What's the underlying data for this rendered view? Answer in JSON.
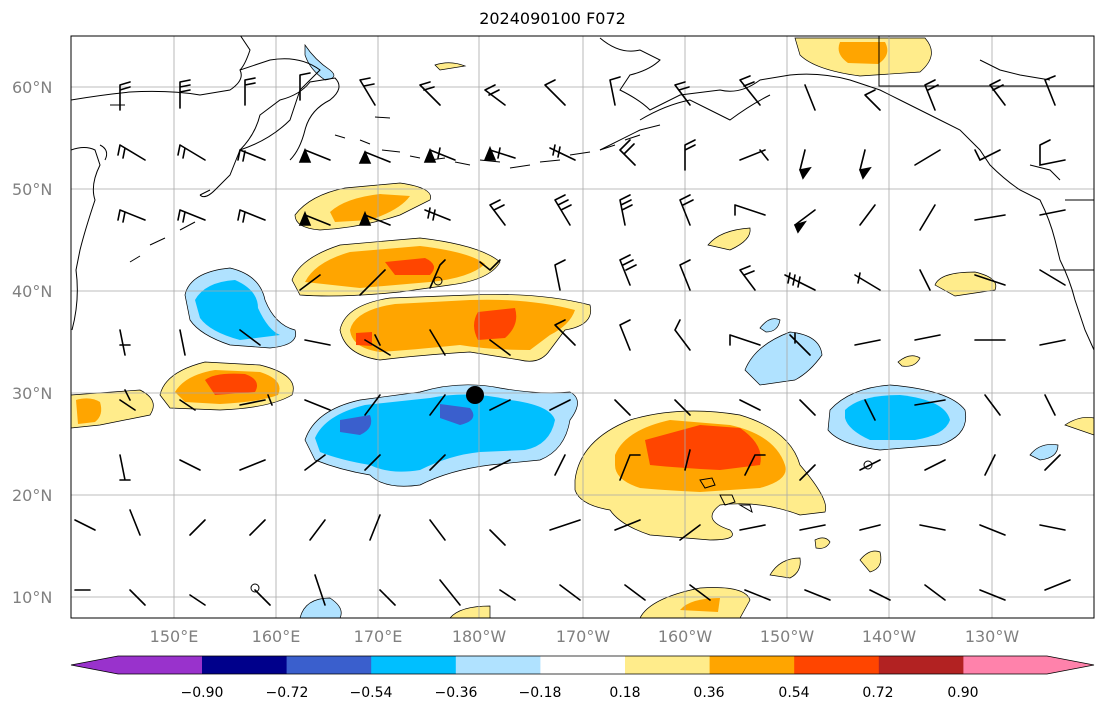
{
  "title": "2024090100 F072",
  "lat_labels": [
    "60°N",
    "50°N",
    "40°N",
    "30°N",
    "20°N",
    "10°N"
  ],
  "lon_labels": [
    "150°E",
    "160°E",
    "170°E",
    "180°W",
    "170°W",
    "160°W",
    "150°W",
    "140°W",
    "130°W"
  ],
  "colorbar": {
    "ticks": [
      "−0.90",
      "−0.72",
      "−0.54",
      "−0.36",
      "−0.18",
      "0.18",
      "0.36",
      "0.54",
      "0.72",
      "0.90"
    ],
    "colors": [
      "#9932cc",
      "#00008b",
      "#3a5fcd",
      "#00bfff",
      "#b0e2ff",
      "#ffffff",
      "#ffec8b",
      "#ffa500",
      "#ff4500",
      "#b22222",
      "#ff82ab"
    ]
  },
  "map_extent": {
    "lon_min": 140,
    "lon_max": 242,
    "lat_min": 8,
    "lat_max": 65
  }
}
